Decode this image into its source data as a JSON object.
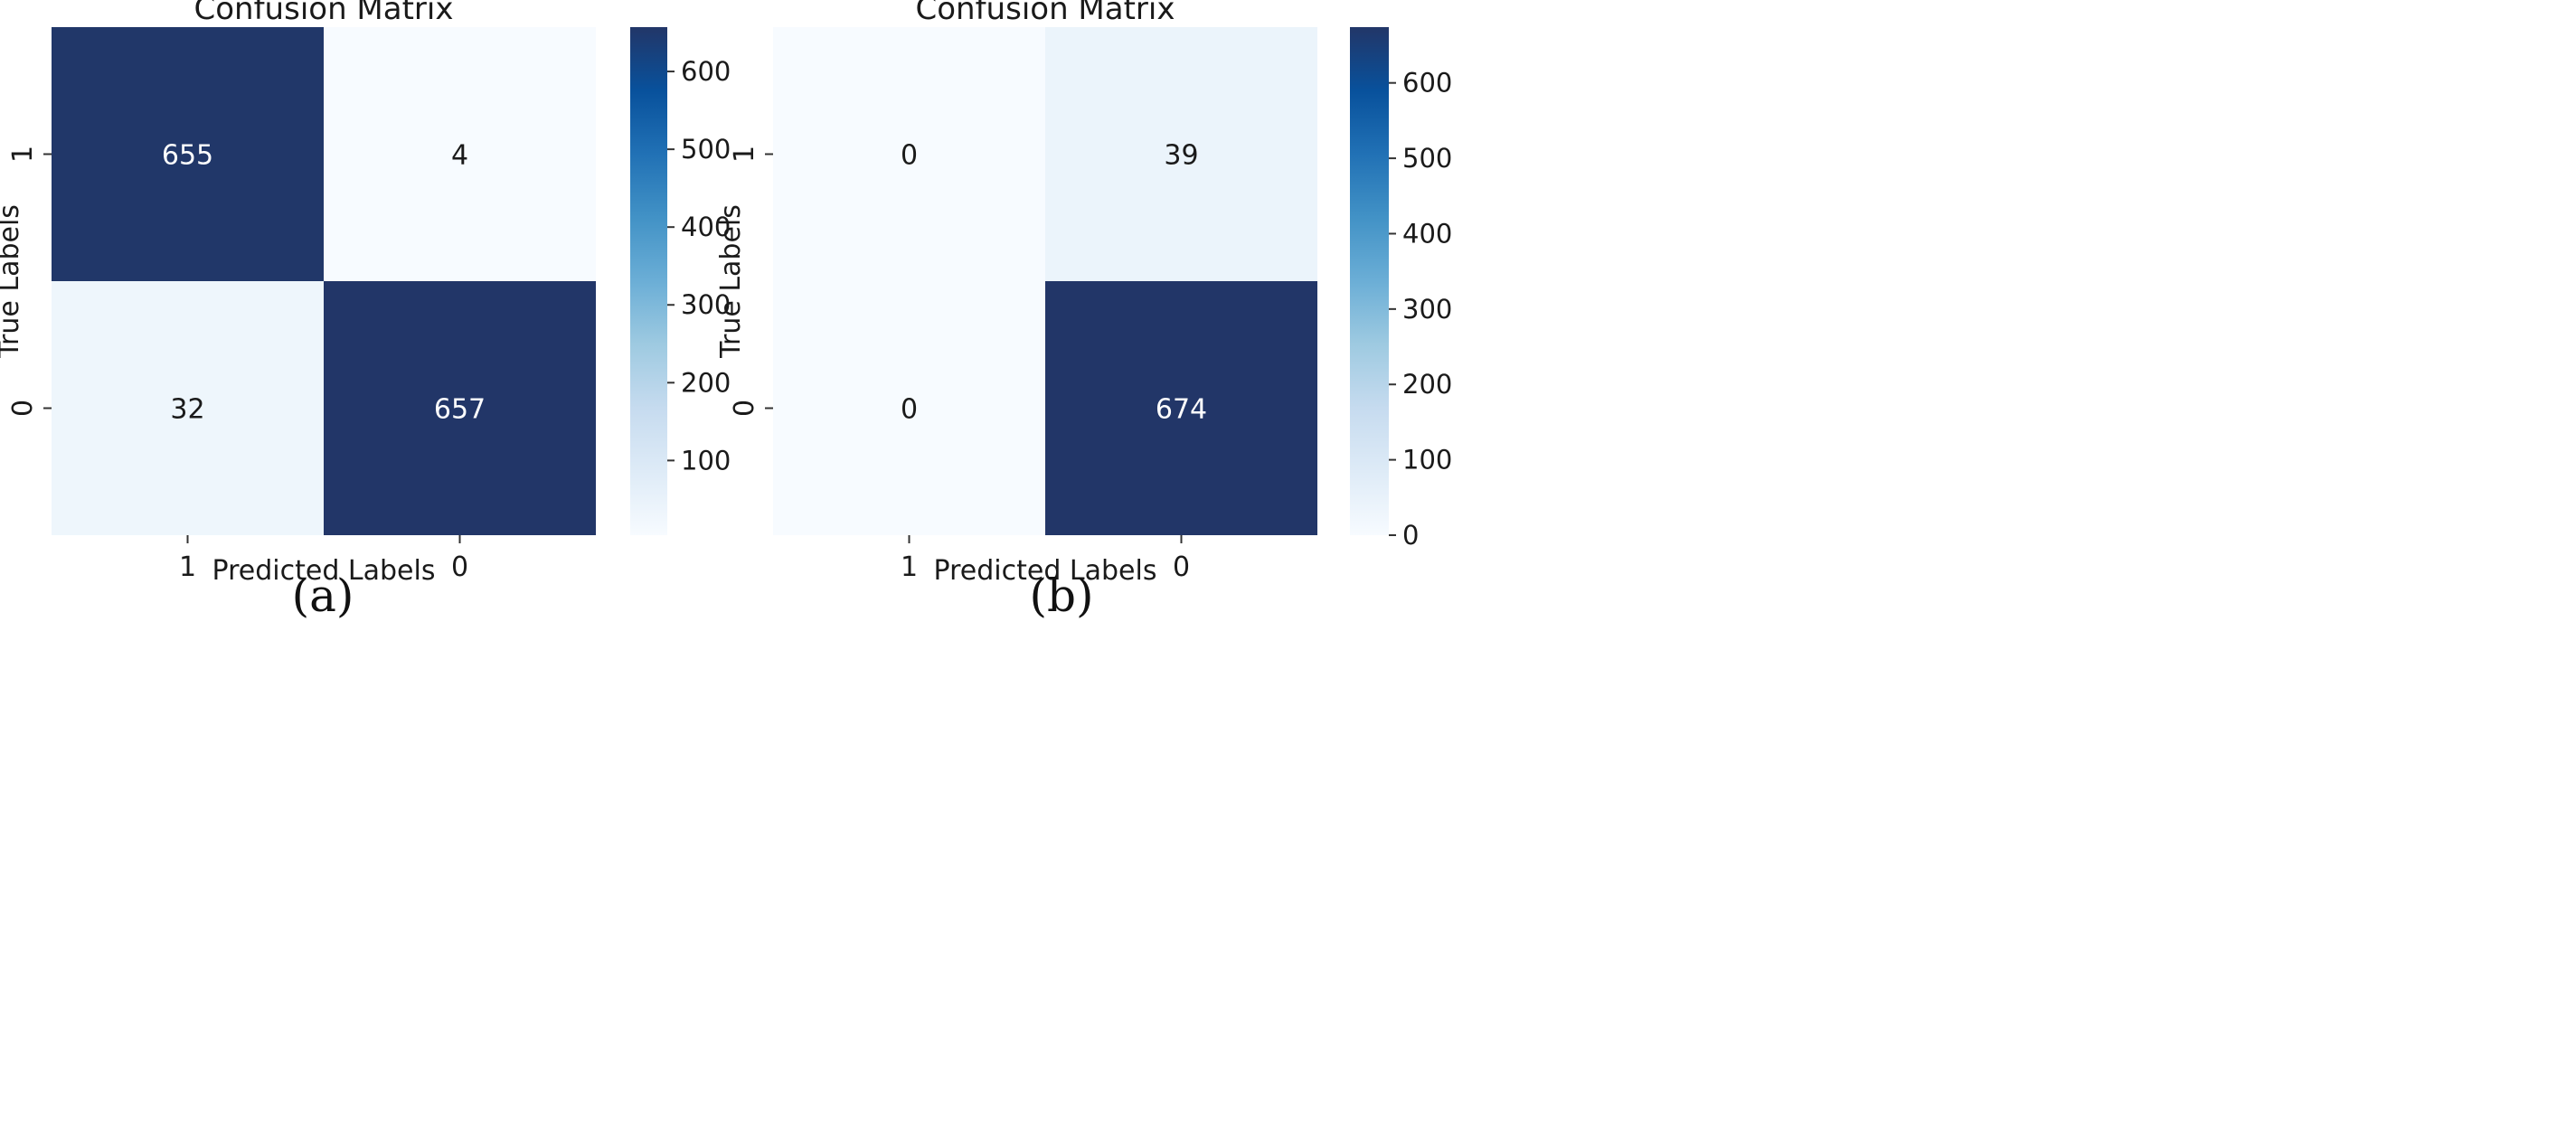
{
  "chart_data": [
    {
      "type": "heatmap",
      "panel_label": "(a)",
      "title": "Confusion Matrix",
      "xlabel": "Predicted Labels",
      "ylabel": "True Labels",
      "x_categories": [
        "1",
        "0"
      ],
      "y_categories": [
        "1",
        "0"
      ],
      "matrix": [
        [
          655,
          4
        ],
        [
          32,
          657
        ]
      ],
      "colorbar": {
        "min": 4,
        "max": 657,
        "ticks": [
          100,
          200,
          300,
          400,
          500,
          600
        ],
        "colormap": "Blues"
      }
    },
    {
      "type": "heatmap",
      "panel_label": "(b)",
      "title": "Confusion Matrix",
      "xlabel": "Predicted Labels",
      "ylabel": "True Labels",
      "x_categories": [
        "1",
        "0"
      ],
      "y_categories": [
        "1",
        "0"
      ],
      "matrix": [
        [
          0,
          39
        ],
        [
          0,
          674
        ]
      ],
      "colorbar": {
        "min": 0,
        "max": 674,
        "ticks": [
          0,
          100,
          200,
          300,
          400,
          500,
          600
        ],
        "colormap": "Blues"
      }
    }
  ],
  "colors": {
    "cmap_light": "#f7fbff",
    "cmap_dark": "#223668",
    "text_dark": "#1a1a1a",
    "text_light": "#ffffff"
  }
}
